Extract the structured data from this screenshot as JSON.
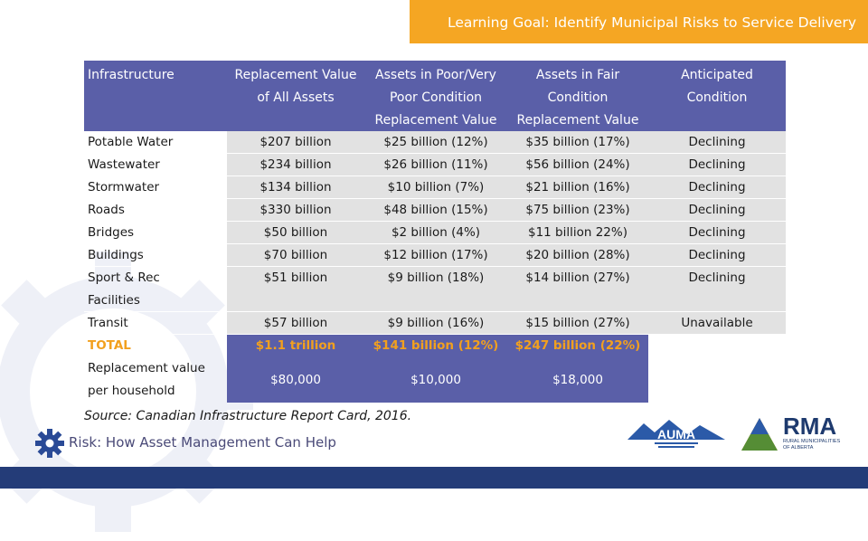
{
  "banner": "Learning Goal: Identify Municipal Risks to Service Delivery",
  "header": {
    "infrastructure": "Infrastructure",
    "replacement": [
      "Replacement Value",
      "of All Assets"
    ],
    "poor": [
      "Assets in Poor/Very",
      "Poor Condition",
      "Replacement Value"
    ],
    "fair": [
      "Assets in Fair",
      "Condition",
      "Replacement Value"
    ],
    "anticipated": [
      "Anticipated",
      "Condition"
    ]
  },
  "rows": [
    {
      "name": [
        "Potable Water"
      ],
      "replacement": "$207 billion",
      "poor": "$25 billion (12%)",
      "fair": "$35 billion (17%)",
      "anticipated": "Declining"
    },
    {
      "name": [
        "Wastewater"
      ],
      "replacement": "$234 billion",
      "poor": "$26 billion (11%)",
      "fair": "$56 billion (24%)",
      "anticipated": "Declining"
    },
    {
      "name": [
        "Stormwater"
      ],
      "replacement": "$134 billion",
      "poor": "$10 billion (7%)",
      "fair": "$21 billion (16%)",
      "anticipated": "Declining"
    },
    {
      "name": [
        "Roads"
      ],
      "replacement": "$330 billion",
      "poor": "$48 billion (15%)",
      "fair": "$75 billion (23%)",
      "anticipated": "Declining"
    },
    {
      "name": [
        "Bridges"
      ],
      "replacement": "$50 billion",
      "poor": "$2 billion (4%)",
      "fair": "$11 billion 22%)",
      "anticipated": "Declining"
    },
    {
      "name": [
        "Buildings"
      ],
      "replacement": "$70 billion",
      "poor": "$12 billion (17%)",
      "fair": "$20 billion (28%)",
      "anticipated": "Declining"
    },
    {
      "name": [
        "Sport & Rec",
        "Facilities"
      ],
      "replacement": "$51 billion",
      "poor": "$9 billion (18%)",
      "fair": "$14 billion (27%)",
      "anticipated": "Declining"
    },
    {
      "name": [
        "Transit"
      ],
      "replacement": "$57 billion",
      "poor": "$9 billion (16%)",
      "fair": "$15 billion (27%)",
      "anticipated": "Unavailable"
    }
  ],
  "total": {
    "label": "TOTAL",
    "replacement": "$1.1 trillion",
    "poor": "$141 billion (12%)",
    "fair": "$247 billion (22%)"
  },
  "per_household": {
    "label": [
      "Replacement value",
      "per household"
    ],
    "replacement": "$80,000",
    "poor": "$10,000",
    "fair": "$18,000"
  },
  "source": "Source: Canadian Infrastructure Report Card, 2016.",
  "footer_title": "Risk: How Asset Management Can Help",
  "logos": {
    "auma": "AUMA",
    "rma": "RMA",
    "rma_sub": "Rural Municipalities of Alberta"
  },
  "colors": {
    "banner": "#f5a623",
    "header": "#5a5fa8",
    "accent": "#f2a01e",
    "bar": "#243c78"
  }
}
